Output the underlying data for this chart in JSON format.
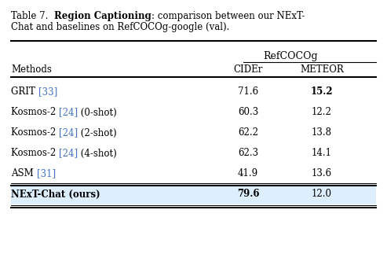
{
  "title_parts": [
    {
      "text": "Table 7.  ",
      "bold": false
    },
    {
      "text": "Region Captioning",
      "bold": true
    },
    {
      "text": ": comparison between our NExT-",
      "bold": false
    }
  ],
  "title_line2": "Chat and baselines on RefCOCOg-google (val).",
  "group_header": "RefCOCOg",
  "rows": [
    {
      "parts": [
        [
          "GRIT ",
          "black"
        ],
        [
          "[33]",
          "#4472c4"
        ]
      ],
      "cider": "71.6",
      "meteor": "15.2",
      "meteor_bold": true,
      "cider_bold": false,
      "highlight": false
    },
    {
      "parts": [
        [
          "Kosmos-2 ",
          "black"
        ],
        [
          "[24]",
          "#4472c4"
        ],
        [
          " (0-shot)",
          "black"
        ]
      ],
      "cider": "60.3",
      "meteor": "12.2",
      "meteor_bold": false,
      "cider_bold": false,
      "highlight": false
    },
    {
      "parts": [
        [
          "Kosmos-2 ",
          "black"
        ],
        [
          "[24]",
          "#4472c4"
        ],
        [
          " (2-shot)",
          "black"
        ]
      ],
      "cider": "62.2",
      "meteor": "13.8",
      "meteor_bold": false,
      "cider_bold": false,
      "highlight": false
    },
    {
      "parts": [
        [
          "Kosmos-2 ",
          "black"
        ],
        [
          "[24]",
          "#4472c4"
        ],
        [
          " (4-shot)",
          "black"
        ]
      ],
      "cider": "62.3",
      "meteor": "14.1",
      "meteor_bold": false,
      "cider_bold": false,
      "highlight": false
    },
    {
      "parts": [
        [
          "ASM ",
          "black"
        ],
        [
          "[31]",
          "#4472c4"
        ]
      ],
      "cider": "41.9",
      "meteor": "13.6",
      "meteor_bold": false,
      "cider_bold": false,
      "highlight": false
    },
    {
      "parts": [
        [
          "NExT-Chat (ours)",
          "black"
        ]
      ],
      "cider": "79.6",
      "meteor": "12.0",
      "meteor_bold": false,
      "cider_bold": true,
      "highlight": true
    }
  ],
  "bg_color": "#ffffff",
  "highlight_color": "#ddeeff",
  "ref_color": "#4472c4",
  "font_size": 8.5,
  "font_family": "DejaVu Serif"
}
